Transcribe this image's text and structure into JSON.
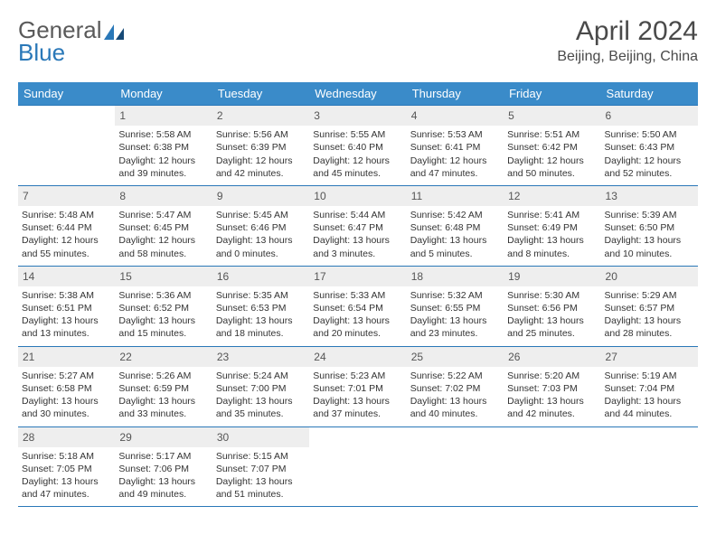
{
  "logo": {
    "word1": "General",
    "word2": "Blue"
  },
  "title": "April 2024",
  "location": "Beijing, Beijing, China",
  "colors": {
    "header_bg": "#3a8bc9",
    "header_text": "#ffffff",
    "rule": "#2a78b8",
    "daynum_bg": "#eeeeee",
    "text": "#333333",
    "logo_gray": "#5a5a5a",
    "logo_blue": "#2a78b8"
  },
  "weekdays": [
    "Sunday",
    "Monday",
    "Tuesday",
    "Wednesday",
    "Thursday",
    "Friday",
    "Saturday"
  ],
  "weeks": [
    [
      {
        "day": "",
        "lines": []
      },
      {
        "day": "1",
        "lines": [
          "Sunrise: 5:58 AM",
          "Sunset: 6:38 PM",
          "Daylight: 12 hours and 39 minutes."
        ]
      },
      {
        "day": "2",
        "lines": [
          "Sunrise: 5:56 AM",
          "Sunset: 6:39 PM",
          "Daylight: 12 hours and 42 minutes."
        ]
      },
      {
        "day": "3",
        "lines": [
          "Sunrise: 5:55 AM",
          "Sunset: 6:40 PM",
          "Daylight: 12 hours and 45 minutes."
        ]
      },
      {
        "day": "4",
        "lines": [
          "Sunrise: 5:53 AM",
          "Sunset: 6:41 PM",
          "Daylight: 12 hours and 47 minutes."
        ]
      },
      {
        "day": "5",
        "lines": [
          "Sunrise: 5:51 AM",
          "Sunset: 6:42 PM",
          "Daylight: 12 hours and 50 minutes."
        ]
      },
      {
        "day": "6",
        "lines": [
          "Sunrise: 5:50 AM",
          "Sunset: 6:43 PM",
          "Daylight: 12 hours and 52 minutes."
        ]
      }
    ],
    [
      {
        "day": "7",
        "lines": [
          "Sunrise: 5:48 AM",
          "Sunset: 6:44 PM",
          "Daylight: 12 hours and 55 minutes."
        ]
      },
      {
        "day": "8",
        "lines": [
          "Sunrise: 5:47 AM",
          "Sunset: 6:45 PM",
          "Daylight: 12 hours and 58 minutes."
        ]
      },
      {
        "day": "9",
        "lines": [
          "Sunrise: 5:45 AM",
          "Sunset: 6:46 PM",
          "Daylight: 13 hours and 0 minutes."
        ]
      },
      {
        "day": "10",
        "lines": [
          "Sunrise: 5:44 AM",
          "Sunset: 6:47 PM",
          "Daylight: 13 hours and 3 minutes."
        ]
      },
      {
        "day": "11",
        "lines": [
          "Sunrise: 5:42 AM",
          "Sunset: 6:48 PM",
          "Daylight: 13 hours and 5 minutes."
        ]
      },
      {
        "day": "12",
        "lines": [
          "Sunrise: 5:41 AM",
          "Sunset: 6:49 PM",
          "Daylight: 13 hours and 8 minutes."
        ]
      },
      {
        "day": "13",
        "lines": [
          "Sunrise: 5:39 AM",
          "Sunset: 6:50 PM",
          "Daylight: 13 hours and 10 minutes."
        ]
      }
    ],
    [
      {
        "day": "14",
        "lines": [
          "Sunrise: 5:38 AM",
          "Sunset: 6:51 PM",
          "Daylight: 13 hours and 13 minutes."
        ]
      },
      {
        "day": "15",
        "lines": [
          "Sunrise: 5:36 AM",
          "Sunset: 6:52 PM",
          "Daylight: 13 hours and 15 minutes."
        ]
      },
      {
        "day": "16",
        "lines": [
          "Sunrise: 5:35 AM",
          "Sunset: 6:53 PM",
          "Daylight: 13 hours and 18 minutes."
        ]
      },
      {
        "day": "17",
        "lines": [
          "Sunrise: 5:33 AM",
          "Sunset: 6:54 PM",
          "Daylight: 13 hours and 20 minutes."
        ]
      },
      {
        "day": "18",
        "lines": [
          "Sunrise: 5:32 AM",
          "Sunset: 6:55 PM",
          "Daylight: 13 hours and 23 minutes."
        ]
      },
      {
        "day": "19",
        "lines": [
          "Sunrise: 5:30 AM",
          "Sunset: 6:56 PM",
          "Daylight: 13 hours and 25 minutes."
        ]
      },
      {
        "day": "20",
        "lines": [
          "Sunrise: 5:29 AM",
          "Sunset: 6:57 PM",
          "Daylight: 13 hours and 28 minutes."
        ]
      }
    ],
    [
      {
        "day": "21",
        "lines": [
          "Sunrise: 5:27 AM",
          "Sunset: 6:58 PM",
          "Daylight: 13 hours and 30 minutes."
        ]
      },
      {
        "day": "22",
        "lines": [
          "Sunrise: 5:26 AM",
          "Sunset: 6:59 PM",
          "Daylight: 13 hours and 33 minutes."
        ]
      },
      {
        "day": "23",
        "lines": [
          "Sunrise: 5:24 AM",
          "Sunset: 7:00 PM",
          "Daylight: 13 hours and 35 minutes."
        ]
      },
      {
        "day": "24",
        "lines": [
          "Sunrise: 5:23 AM",
          "Sunset: 7:01 PM",
          "Daylight: 13 hours and 37 minutes."
        ]
      },
      {
        "day": "25",
        "lines": [
          "Sunrise: 5:22 AM",
          "Sunset: 7:02 PM",
          "Daylight: 13 hours and 40 minutes."
        ]
      },
      {
        "day": "26",
        "lines": [
          "Sunrise: 5:20 AM",
          "Sunset: 7:03 PM",
          "Daylight: 13 hours and 42 minutes."
        ]
      },
      {
        "day": "27",
        "lines": [
          "Sunrise: 5:19 AM",
          "Sunset: 7:04 PM",
          "Daylight: 13 hours and 44 minutes."
        ]
      }
    ],
    [
      {
        "day": "28",
        "lines": [
          "Sunrise: 5:18 AM",
          "Sunset: 7:05 PM",
          "Daylight: 13 hours and 47 minutes."
        ]
      },
      {
        "day": "29",
        "lines": [
          "Sunrise: 5:17 AM",
          "Sunset: 7:06 PM",
          "Daylight: 13 hours and 49 minutes."
        ]
      },
      {
        "day": "30",
        "lines": [
          "Sunrise: 5:15 AM",
          "Sunset: 7:07 PM",
          "Daylight: 13 hours and 51 minutes."
        ]
      },
      {
        "day": "",
        "lines": []
      },
      {
        "day": "",
        "lines": []
      },
      {
        "day": "",
        "lines": []
      },
      {
        "day": "",
        "lines": []
      }
    ]
  ]
}
